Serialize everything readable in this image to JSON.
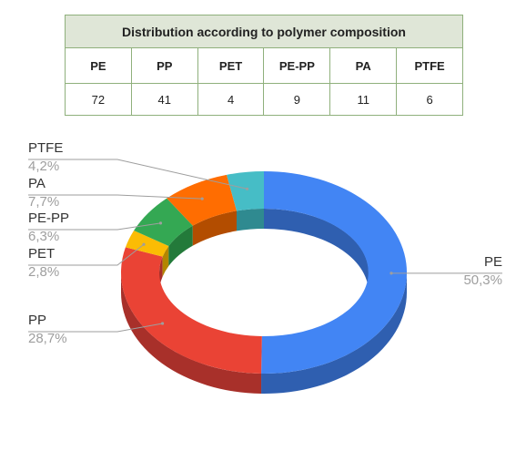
{
  "table": {
    "title": "Distribution according to polymer composition",
    "headers": [
      "PE",
      "PP",
      "PET",
      "PE-PP",
      "PA",
      "PTFE"
    ],
    "values": [
      "72",
      "41",
      "4",
      "9",
      "11",
      "6"
    ]
  },
  "chart_data": {
    "type": "pie",
    "variant": "3d-donut",
    "slices": [
      {
        "label": "PE",
        "value": 50.3,
        "percent_label": "50,3%",
        "color": "#4285f4",
        "side_color": "#2f5fb0"
      },
      {
        "label": "PP",
        "value": 28.7,
        "percent_label": "28,7%",
        "color": "#ea4335",
        "side_color": "#a8302a"
      },
      {
        "label": "PET",
        "value": 2.8,
        "percent_label": "2,8%",
        "color": "#fbbc04",
        "side_color": "#b38600"
      },
      {
        "label": "PE-PP",
        "value": 6.3,
        "percent_label": "6,3%",
        "color": "#34a853",
        "side_color": "#237a3a"
      },
      {
        "label": "PA",
        "value": 7.7,
        "percent_label": "7,7%",
        "color": "#ff6d01",
        "side_color": "#b34d00"
      },
      {
        "label": "PTFE",
        "value": 4.2,
        "percent_label": "4,2%",
        "color": "#46bdc6",
        "side_color": "#2f8a90"
      }
    ],
    "start_angle_deg": 90,
    "direction": "clockwise",
    "label_color": "#333333",
    "percent_color": "#9e9e9e",
    "leader_color": "#9e9e9e"
  }
}
